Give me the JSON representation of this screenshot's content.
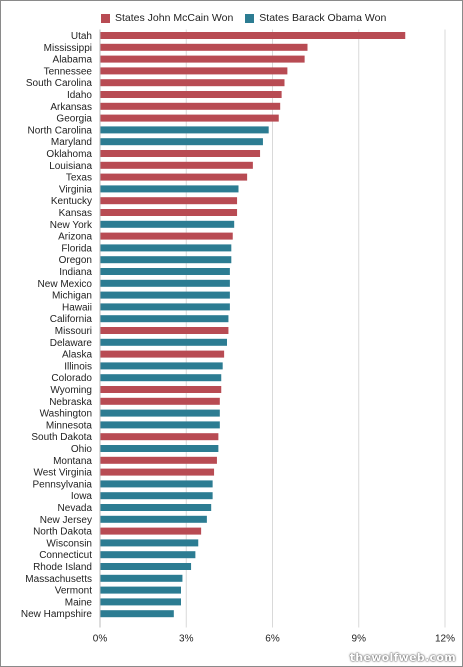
{
  "chart_data": {
    "type": "bar",
    "orientation": "horizontal",
    "series": [
      {
        "name": "States John McCain Won",
        "color": "#b84b53"
      },
      {
        "name": "States Barack Obama Won",
        "color": "#2c7c92"
      }
    ],
    "categories": [
      "Utah",
      "Mississippi",
      "Alabama",
      "Tennessee",
      "South Carolina",
      "Idaho",
      "Arkansas",
      "Georgia",
      "North Carolina",
      "Maryland",
      "Oklahoma",
      "Louisiana",
      "Texas",
      "Virginia",
      "Kentucky",
      "Kansas",
      "New York",
      "Arizona",
      "Florida",
      "Oregon",
      "Indiana",
      "New Mexico",
      "Michigan",
      "Hawaii",
      "California",
      "Missouri",
      "Delaware",
      "Alaska",
      "Illinois",
      "Colorado",
      "Wyoming",
      "Nebraska",
      "Washington",
      "Minnesota",
      "South Dakota",
      "Ohio",
      "Montana",
      "West Virginia",
      "Pennsylvania",
      "Iowa",
      "Nevada",
      "New Jersey",
      "North Dakota",
      "Wisconsin",
      "Connecticut",
      "Rhode Island",
      "Massachusetts",
      "Vermont",
      "Maine",
      "New Hampshire"
    ],
    "values": [
      10.6,
      7.2,
      7.1,
      6.5,
      6.4,
      6.3,
      6.25,
      6.2,
      5.85,
      5.65,
      5.55,
      5.3,
      5.1,
      4.8,
      4.75,
      4.75,
      4.65,
      4.6,
      4.55,
      4.55,
      4.5,
      4.5,
      4.5,
      4.5,
      4.45,
      4.45,
      4.4,
      4.3,
      4.25,
      4.2,
      4.2,
      4.15,
      4.15,
      4.15,
      4.1,
      4.1,
      4.05,
      3.95,
      3.9,
      3.9,
      3.85,
      3.7,
      3.5,
      3.4,
      3.3,
      3.15,
      2.85,
      2.8,
      2.8,
      2.55
    ],
    "winner": [
      "McCain",
      "McCain",
      "McCain",
      "McCain",
      "McCain",
      "McCain",
      "McCain",
      "McCain",
      "Obama",
      "Obama",
      "McCain",
      "McCain",
      "McCain",
      "Obama",
      "McCain",
      "McCain",
      "Obama",
      "McCain",
      "Obama",
      "Obama",
      "Obama",
      "Obama",
      "Obama",
      "Obama",
      "Obama",
      "McCain",
      "Obama",
      "McCain",
      "Obama",
      "Obama",
      "McCain",
      "McCain",
      "Obama",
      "Obama",
      "McCain",
      "Obama",
      "McCain",
      "McCain",
      "Obama",
      "Obama",
      "Obama",
      "Obama",
      "McCain",
      "Obama",
      "Obama",
      "Obama",
      "Obama",
      "Obama",
      "Obama",
      "Obama"
    ],
    "xticks": [
      "0%",
      "3%",
      "6%",
      "9%",
      "12%"
    ],
    "xlim": [
      0,
      12
    ],
    "grid": true,
    "legend_position": "top"
  },
  "watermark": "thewolfweb.com"
}
